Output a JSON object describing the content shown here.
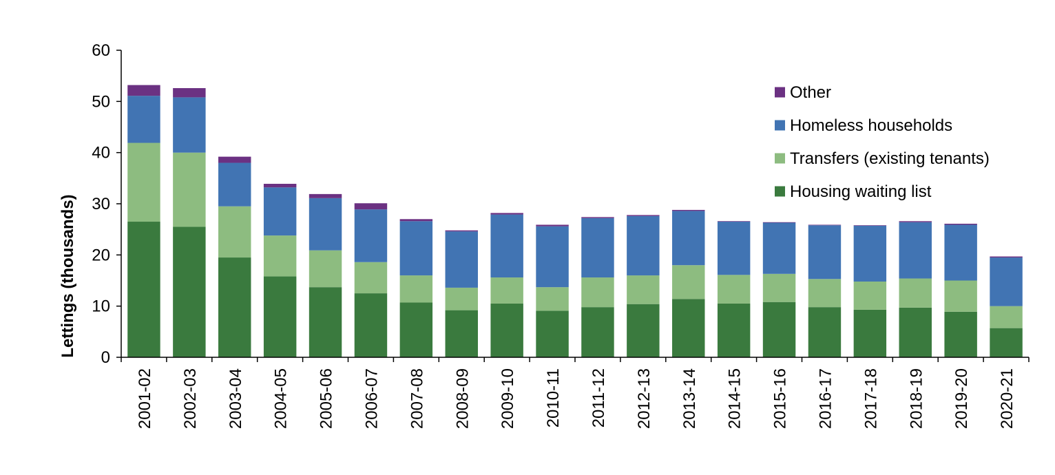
{
  "chart_data": {
    "type": "bar",
    "stacked": true,
    "ylabel": "Lettings (thousands)",
    "xlabel": "",
    "ylim": [
      0,
      60
    ],
    "yticks": [
      0,
      10,
      20,
      30,
      40,
      50,
      60
    ],
    "grid": false,
    "legend_position": "top-right",
    "categories": [
      "2001-02",
      "2002-03",
      "2003-04",
      "2004-05",
      "2005-06",
      "2006-07",
      "2007-08",
      "2008-09",
      "2009-10",
      "2010-11",
      "2011-12",
      "2012-13",
      "2013-14",
      "2014-15",
      "2015-16",
      "2016-17",
      "2017-18",
      "2018-19",
      "2019-20",
      "2020-21"
    ],
    "series": [
      {
        "name": "Housing waiting list",
        "color": "#3a7a3e",
        "values": [
          26.5,
          25.5,
          19.5,
          15.8,
          13.7,
          12.5,
          10.7,
          9.2,
          10.5,
          9.1,
          9.8,
          10.4,
          11.4,
          10.5,
          10.8,
          9.8,
          9.3,
          9.7,
          8.9,
          5.7
        ]
      },
      {
        "name": "Transfers (existing tenants)",
        "color": "#8dbc80",
        "values": [
          15.4,
          14.5,
          10.0,
          8.0,
          7.2,
          6.1,
          5.3,
          4.4,
          5.1,
          4.6,
          5.8,
          5.6,
          6.6,
          5.6,
          5.5,
          5.5,
          5.5,
          5.7,
          6.1,
          4.3
        ]
      },
      {
        "name": "Homeless households",
        "color": "#4174b3",
        "values": [
          9.2,
          10.8,
          8.5,
          9.4,
          10.2,
          10.3,
          10.6,
          11.0,
          12.3,
          11.9,
          11.6,
          11.6,
          10.6,
          10.4,
          10.0,
          10.5,
          10.9,
          11.0,
          10.9,
          9.5
        ]
      },
      {
        "name": "Other",
        "color": "#6b3182",
        "values": [
          2.1,
          1.8,
          1.2,
          0.7,
          0.8,
          1.2,
          0.4,
          0.2,
          0.3,
          0.3,
          0.2,
          0.2,
          0.2,
          0.1,
          0.1,
          0.1,
          0.1,
          0.2,
          0.2,
          0.2
        ]
      }
    ],
    "legend_order": [
      "Other",
      "Homeless households",
      "Transfers (existing tenants)",
      "Housing waiting list"
    ]
  }
}
